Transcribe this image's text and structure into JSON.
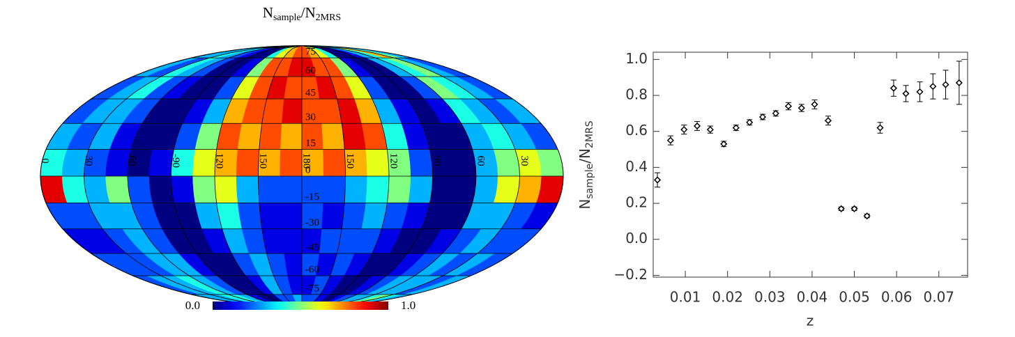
{
  "chart_data": [
    {
      "type": "map",
      "title": [
        "N",
        "sample",
        "/N",
        "2MRS"
      ],
      "lonlim": [
        0,
        360
      ],
      "latlim": [
        -90,
        90
      ],
      "lon_ticks": [
        0,
        30,
        60,
        {
          "value": 90,
          "label": "-90"
        },
        120,
        150,
        180,
        {
          "value": 210,
          "label": "150"
        },
        {
          "value": 240,
          "label": "120"
        },
        {
          "value": 270,
          "label": "90"
        },
        {
          "value": 300,
          "label": "60"
        },
        {
          "value": 330,
          "label": "30"
        }
      ],
      "lat_ticks": [
        75,
        60,
        45,
        30,
        15,
        0,
        -15,
        -30,
        -45,
        -60,
        -75
      ],
      "colormap": "jet",
      "clim": [
        0,
        1
      ],
      "cbar_ticks": [
        {
          "value": 0,
          "label": "0.0"
        },
        {
          "value": 1,
          "label": "1.0"
        }
      ],
      "values": [
        [
          0.3,
          0.3,
          0.4,
          0.3,
          0.2,
          0.1,
          0.0,
          0.0,
          0.4,
          0.6,
          0.7,
          0.8,
          0.8,
          0.7,
          0.6,
          0.4,
          0.0,
          0.0,
          0.1,
          0.3,
          0.4,
          0.7,
          0.5,
          0.3
        ],
        [
          0.3,
          0.2,
          0.4,
          0.3,
          0.2,
          0.0,
          0.0,
          0.1,
          0.5,
          0.8,
          0.8,
          0.9,
          0.9,
          0.8,
          0.8,
          0.5,
          0.1,
          0.0,
          0.0,
          0.3,
          0.4,
          0.5,
          0.3,
          0.2
        ],
        [
          0.2,
          0.3,
          0.4,
          0.2,
          0.1,
          0.0,
          0.0,
          0.2,
          0.6,
          0.8,
          0.9,
          0.8,
          0.8,
          0.9,
          0.8,
          0.6,
          0.2,
          0.0,
          0.0,
          0.2,
          0.5,
          0.4,
          0.3,
          0.2
        ],
        [
          0.2,
          0.3,
          0.3,
          0.2,
          0.0,
          0.0,
          0.1,
          0.3,
          0.7,
          0.8,
          0.8,
          0.9,
          0.8,
          0.8,
          0.9,
          0.7,
          0.3,
          0.1,
          0.0,
          0.1,
          0.4,
          0.3,
          0.2,
          0.3
        ],
        [
          0.3,
          0.2,
          0.3,
          0.1,
          0.0,
          0.0,
          0.2,
          0.5,
          0.8,
          0.7,
          0.8,
          0.7,
          0.8,
          0.7,
          0.9,
          0.8,
          0.4,
          0.1,
          0.0,
          0.0,
          0.3,
          0.4,
          0.3,
          0.2
        ],
        [
          0.4,
          0.3,
          0.2,
          0.1,
          0.0,
          0.1,
          0.4,
          0.6,
          0.7,
          0.8,
          0.7,
          0.8,
          0.7,
          0.8,
          0.7,
          0.6,
          0.5,
          0.2,
          0.0,
          0.0,
          0.3,
          0.5,
          0.6,
          0.5
        ],
        [
          0.9,
          0.4,
          0.3,
          0.5,
          0.2,
          0.0,
          0.1,
          0.5,
          0.6,
          0.3,
          0.2,
          0.2,
          0.2,
          0.2,
          0.3,
          0.4,
          0.5,
          0.3,
          0.0,
          0.0,
          0.3,
          0.6,
          0.7,
          0.9
        ],
        [
          0.2,
          0.2,
          0.3,
          0.3,
          0.2,
          0.0,
          0.0,
          0.3,
          0.4,
          0.2,
          0.1,
          0.1,
          0.2,
          0.1,
          0.2,
          0.3,
          0.2,
          0.1,
          0.0,
          0.0,
          0.3,
          0.3,
          0.2,
          0.1
        ],
        [
          0.1,
          0.1,
          0.2,
          0.3,
          0.2,
          0.0,
          0.0,
          0.1,
          0.3,
          0.2,
          0.1,
          0.1,
          0.1,
          0.2,
          0.2,
          0.2,
          0.1,
          0.0,
          0.0,
          0.1,
          0.2,
          0.3,
          0.2,
          0.2
        ],
        [
          0.2,
          0.2,
          0.2,
          0.3,
          0.3,
          0.1,
          0.0,
          0.0,
          0.2,
          0.3,
          0.2,
          0.1,
          0.2,
          0.1,
          0.2,
          0.1,
          0.0,
          0.0,
          0.1,
          0.2,
          0.3,
          0.2,
          0.3,
          0.2
        ],
        [
          0.2,
          0.3,
          0.3,
          0.4,
          0.3,
          0.2,
          0.0,
          0.0,
          0.1,
          0.3,
          0.2,
          0.1,
          0.1,
          0.2,
          0.1,
          0.0,
          0.0,
          0.1,
          0.2,
          0.3,
          0.3,
          0.3,
          0.2,
          0.3
        ],
        [
          0.3,
          0.3,
          0.3,
          0.4,
          0.4,
          0.3,
          0.1,
          0.0,
          0.0,
          0.2,
          0.2,
          0.3,
          0.2,
          0.2,
          0.1,
          0.0,
          0.1,
          0.2,
          0.3,
          0.3,
          0.4,
          0.5,
          0.4,
          0.3
        ]
      ]
    },
    {
      "type": "scatter",
      "x": [
        0.0034,
        0.0065,
        0.0097,
        0.0128,
        0.0159,
        0.0191,
        0.022,
        0.0252,
        0.0283,
        0.0314,
        0.0344,
        0.0375,
        0.0406,
        0.0438,
        0.0469,
        0.05,
        0.053,
        0.0561,
        0.0593,
        0.0622,
        0.0655,
        0.0686,
        0.0716,
        0.0748
      ],
      "values": [
        0.33,
        0.55,
        0.61,
        0.63,
        0.61,
        0.53,
        0.62,
        0.65,
        0.68,
        0.7,
        0.74,
        0.73,
        0.75,
        0.66,
        0.17,
        0.17,
        0.13,
        0.62,
        0.84,
        0.81,
        0.82,
        0.85,
        0.86,
        0.87
      ],
      "errors": [
        0.04,
        0.025,
        0.025,
        0.025,
        0.02,
        0.015,
        0.015,
        0.015,
        0.015,
        0.015,
        0.02,
        0.02,
        0.025,
        0.025,
        0.01,
        0.01,
        0.01,
        0.03,
        0.045,
        0.045,
        0.055,
        0.07,
        0.08,
        0.12
      ],
      "color": "#000000",
      "xlim": [
        0.0024,
        0.0768
      ],
      "ylim": [
        -0.21,
        1.04
      ],
      "xticks": [
        0.01,
        0.02,
        0.03,
        0.04,
        0.05,
        0.06,
        0.07
      ],
      "yticks": [
        {
          "value": -0.2,
          "label": "−0.2"
        },
        {
          "value": 0,
          "label": "0.0"
        },
        {
          "value": 0.2,
          "label": "0.2"
        },
        {
          "value": 0.4,
          "label": "0.4"
        },
        {
          "value": 0.6,
          "label": "0.6"
        },
        {
          "value": 0.8,
          "label": "0.8"
        },
        {
          "value": 1.0,
          "label": "1.0"
        }
      ],
      "xlabel": "z",
      "ylabel": [
        "N",
        "sample",
        "/N",
        "2MRS"
      ]
    }
  ]
}
